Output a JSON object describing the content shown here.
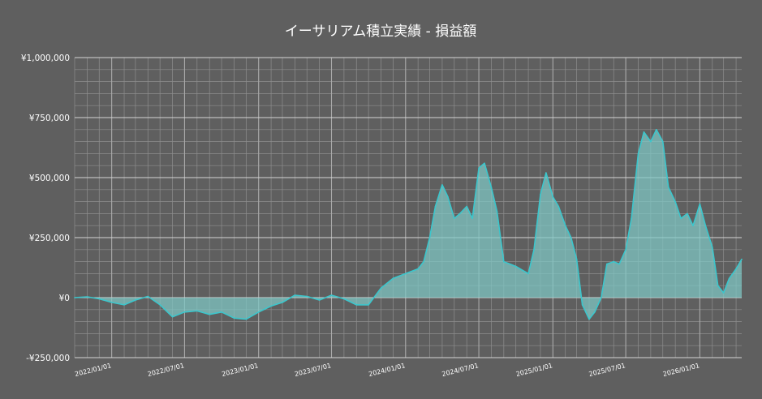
{
  "chart_data": {
    "type": "area",
    "title": "イーサリアム積立実績  -  損益額",
    "xlabel": "",
    "ylabel": "",
    "ylim": [
      -250000,
      1000000
    ],
    "xlim": [
      "2021-10-01",
      "2026-04-15"
    ],
    "yticks": [
      -250000,
      0,
      250000,
      500000,
      750000,
      1000000
    ],
    "ytick_labels": [
      "-¥250,000",
      "¥0",
      "¥250,000",
      "¥500,000",
      "¥750,000",
      "¥1,000,000"
    ],
    "xticks": [
      "2022-01-01",
      "2022-07-01",
      "2023-01-01",
      "2023-07-01",
      "2024-01-01",
      "2024-07-01",
      "2025-01-01",
      "2025-07-01",
      "2026-01-01"
    ],
    "xtick_labels": [
      "2022/01/01",
      "2022/07/01",
      "2023/01/01",
      "2023/07/01",
      "2024/01/01",
      "2024/07/01",
      "2025/01/01",
      "2025/07/01",
      "2026/01/01"
    ],
    "grid": true,
    "legend": "none",
    "colors": {
      "background": "#5f5f5f",
      "plot_background": "#5f5f5f",
      "grid": "#8e8e8e",
      "line": "#3cc6cc",
      "fill": "#7fc9c6",
      "text": "#ffffff"
    },
    "series": [
      {
        "x": [
          "2021-10-01",
          "2021-11-01",
          "2021-12-01",
          "2022-01-01",
          "2022-02-01",
          "2022-03-01",
          "2022-04-01",
          "2022-05-01",
          "2022-06-01",
          "2022-07-01",
          "2022-08-01",
          "2022-09-01",
          "2022-10-01",
          "2022-11-01",
          "2022-12-01",
          "2023-01-01",
          "2023-02-01",
          "2023-03-01",
          "2023-04-01",
          "2023-05-01",
          "2023-06-01",
          "2023-07-01",
          "2023-08-01",
          "2023-09-01",
          "2023-10-01",
          "2023-11-01",
          "2023-12-01",
          "2024-01-01",
          "2024-02-01",
          "2024-02-15",
          "2024-03-01",
          "2024-03-15",
          "2024-04-01",
          "2024-04-15",
          "2024-05-01",
          "2024-05-15",
          "2024-06-01",
          "2024-06-15",
          "2024-07-01",
          "2024-07-15",
          "2024-08-01",
          "2024-08-15",
          "2024-09-01",
          "2024-10-01",
          "2024-11-01",
          "2024-11-15",
          "2024-12-01",
          "2024-12-15",
          "2025-01-01",
          "2025-01-15",
          "2025-02-01",
          "2025-02-15",
          "2025-03-01",
          "2025-03-15",
          "2025-04-01",
          "2025-04-15",
          "2025-05-01",
          "2025-05-15",
          "2025-06-01",
          "2025-06-15",
          "2025-07-01",
          "2025-07-15",
          "2025-08-01",
          "2025-08-15",
          "2025-09-01",
          "2025-09-15",
          "2025-10-01",
          "2025-10-15",
          "2025-11-01",
          "2025-11-15",
          "2025-12-01",
          "2025-12-15",
          "2026-01-01",
          "2026-01-15",
          "2026-02-01",
          "2026-02-15",
          "2026-03-01",
          "2026-03-15",
          "2026-04-01",
          "2026-04-15"
        ],
        "values": [
          0,
          3000,
          -5000,
          -20000,
          -30000,
          -10000,
          5000,
          -30000,
          -80000,
          -60000,
          -55000,
          -70000,
          -60000,
          -85000,
          -90000,
          -60000,
          -35000,
          -20000,
          10000,
          5000,
          -10000,
          10000,
          -5000,
          -30000,
          -30000,
          40000,
          80000,
          100000,
          120000,
          150000,
          250000,
          380000,
          470000,
          420000,
          330000,
          350000,
          380000,
          330000,
          540000,
          560000,
          460000,
          360000,
          150000,
          130000,
          100000,
          200000,
          430000,
          520000,
          420000,
          380000,
          300000,
          250000,
          160000,
          -30000,
          -90000,
          -60000,
          0,
          140000,
          150000,
          140000,
          200000,
          330000,
          600000,
          690000,
          650000,
          700000,
          650000,
          460000,
          400000,
          330000,
          350000,
          300000,
          390000,
          300000,
          210000,
          50000,
          20000,
          80000,
          120000,
          160000
        ]
      }
    ]
  }
}
